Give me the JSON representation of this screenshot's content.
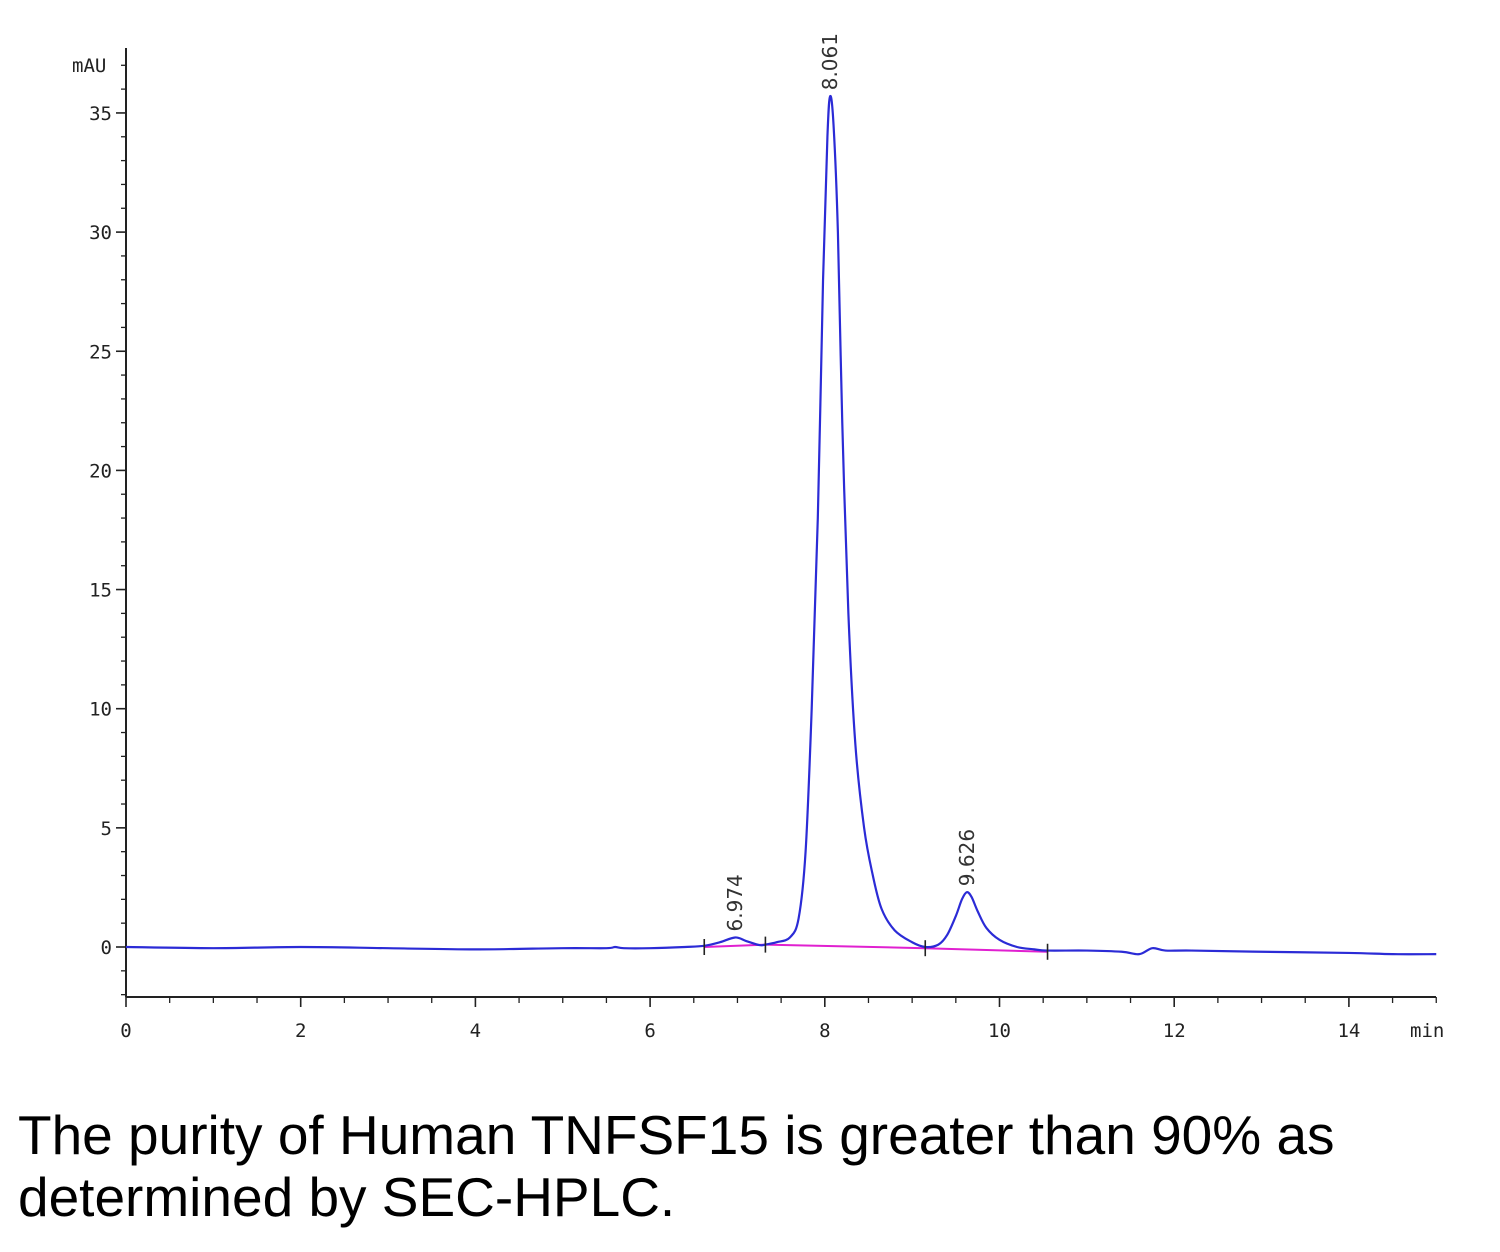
{
  "caption": "The purity of Human TNFSF15 is greater than 90% as determined by SEC-HPLC.",
  "chart_data": {
    "type": "line",
    "title": "",
    "xlabel": "min",
    "ylabel": "mAU",
    "xlim": [
      0,
      15
    ],
    "ylim": [
      -2,
      37
    ],
    "x_ticks": [
      0,
      2,
      4,
      6,
      8,
      10,
      12,
      14
    ],
    "y_ticks": [
      0,
      5,
      10,
      15,
      20,
      25,
      30,
      35
    ],
    "grid": false,
    "colors": {
      "trace": "#2b2bd6",
      "baseline": "#e020d0",
      "axis": "#222222"
    },
    "peaks": [
      {
        "label": "6.974",
        "x": 6.974,
        "y": 0.4
      },
      {
        "label": "8.061",
        "x": 8.061,
        "y": 35.7
      },
      {
        "label": "9.626",
        "x": 9.626,
        "y": 2.3
      }
    ],
    "integration_markers": [
      6.62,
      7.32,
      9.15,
      10.55
    ],
    "baseline_segments": [
      {
        "x": [
          6.62,
          7.32
        ],
        "y": [
          0.0,
          0.1
        ]
      },
      {
        "x": [
          7.32,
          9.15
        ],
        "y": [
          0.1,
          -0.05
        ]
      },
      {
        "x": [
          9.15,
          10.55
        ],
        "y": [
          -0.05,
          -0.2
        ]
      }
    ],
    "series": [
      {
        "x": [
          0,
          1,
          2,
          3,
          4,
          5,
          5.5,
          5.6,
          5.7,
          6.0,
          6.4,
          6.62,
          6.8,
          6.974,
          7.1,
          7.25,
          7.32,
          7.45,
          7.6,
          7.7,
          7.78,
          7.85,
          7.92,
          7.98,
          8.03,
          8.061,
          8.1,
          8.15,
          8.2,
          8.27,
          8.35,
          8.45,
          8.55,
          8.65,
          8.8,
          9.0,
          9.15,
          9.3,
          9.4,
          9.5,
          9.57,
          9.626,
          9.68,
          9.75,
          9.85,
          10.0,
          10.2,
          10.4,
          10.55,
          11.0,
          11.4,
          11.6,
          11.75,
          11.9,
          12.2,
          13.0,
          14.0,
          14.5,
          15.0
        ],
        "y": [
          0.0,
          -0.05,
          0.0,
          -0.05,
          -0.1,
          -0.05,
          -0.05,
          0.0,
          -0.05,
          -0.05,
          0.0,
          0.05,
          0.2,
          0.4,
          0.25,
          0.08,
          0.1,
          0.2,
          0.4,
          1.2,
          4.0,
          10.0,
          18.0,
          28.0,
          34.0,
          35.7,
          34.5,
          30.0,
          22.0,
          14.0,
          8.5,
          5.0,
          3.0,
          1.6,
          0.7,
          0.2,
          0.0,
          0.1,
          0.5,
          1.3,
          2.0,
          2.3,
          2.1,
          1.5,
          0.8,
          0.3,
          0.0,
          -0.1,
          -0.15,
          -0.15,
          -0.2,
          -0.3,
          -0.05,
          -0.15,
          -0.15,
          -0.2,
          -0.25,
          -0.3,
          -0.3
        ]
      }
    ]
  }
}
